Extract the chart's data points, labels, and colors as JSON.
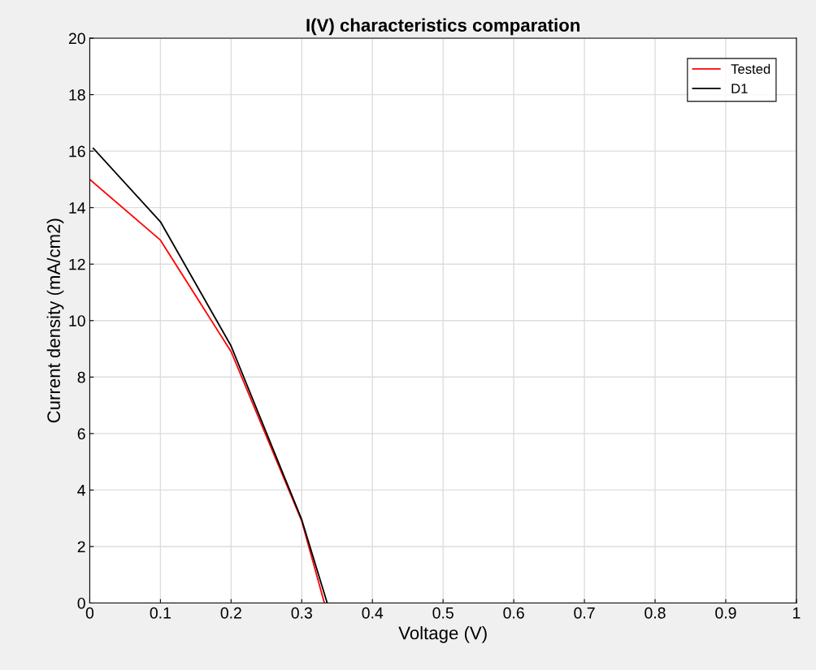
{
  "chart_data": {
    "type": "line",
    "title": "I(V) characteristics comparation",
    "xlabel": "Voltage (V)",
    "ylabel": "Current density (mA/cm2)",
    "xlim": [
      0,
      1
    ],
    "ylim": [
      0,
      20
    ],
    "xticks": [
      0,
      0.1,
      0.2,
      0.3,
      0.4,
      0.5,
      0.6,
      0.7,
      0.8,
      0.9,
      1
    ],
    "yticks": [
      0,
      2,
      4,
      6,
      8,
      10,
      12,
      14,
      16,
      18,
      20
    ],
    "grid": true,
    "legend": "top right",
    "series": [
      {
        "name": "Tested",
        "color": "#ff0000",
        "x": [
          0,
          0.1,
          0.2,
          0.3,
          0.332
        ],
        "values": [
          15.0,
          12.85,
          8.9,
          2.9,
          0
        ]
      },
      {
        "name": "D1",
        "color": "#000000",
        "x": [
          0.005,
          0.1,
          0.2,
          0.3,
          0.336
        ],
        "values": [
          16.1,
          13.5,
          9.1,
          2.95,
          0
        ]
      }
    ]
  }
}
